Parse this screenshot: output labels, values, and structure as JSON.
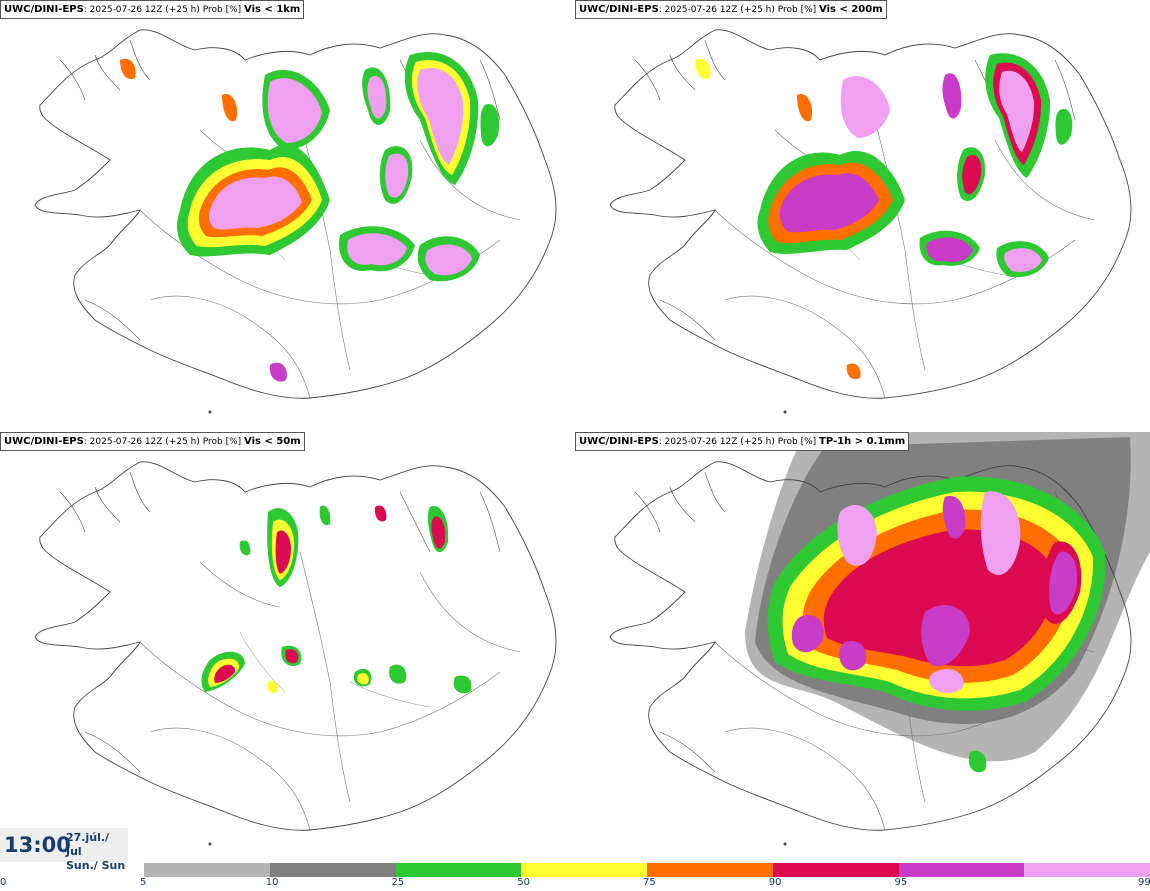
{
  "panels": [
    {
      "model": "UWC/DINI-EPS",
      "info": ": 2025-07-26 12Z (+25 h) Prob [%] ",
      "variable": "Vis < 1km"
    },
    {
      "model": "UWC/DINI-EPS",
      "info": ": 2025-07-26 12Z (+25 h) Prob [%] ",
      "variable": "Vis < 200m"
    },
    {
      "model": "UWC/DINI-EPS",
      "info": ": 2025-07-26 12Z (+25 h) Prob [%] ",
      "variable": "Vis < 50m"
    },
    {
      "model": "UWC/DINI-EPS",
      "info": ": 2025-07-26 12Z (+25 h) Prob [%] ",
      "variable": "TP-1h > 0.1mm"
    }
  ],
  "time": {
    "clock": "13:00",
    "date_line1": "27.júl./ Jul",
    "date_line2": "Sun./ Sun"
  },
  "legend": {
    "ticks": [
      "0",
      "5",
      "10",
      "25",
      "50",
      "75",
      "90",
      "95",
      "99"
    ],
    "colors": [
      "#b4b4b4",
      "#808080",
      "#2ec832",
      "#ffff32",
      "#ff6e00",
      "#dc0a50",
      "#c83cc8",
      "#f0a0f0"
    ]
  }
}
